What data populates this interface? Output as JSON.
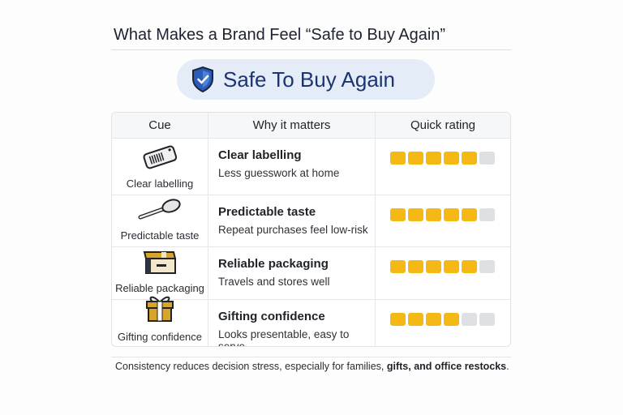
{
  "title": "What Makes a Brand Feel “Safe to Buy Again”",
  "badge": {
    "label": "Safe To Buy Again",
    "icon": "shield-check-icon",
    "color": "#1d3470"
  },
  "table": {
    "headers": [
      "Cue",
      "Why it matters",
      "Quick rating"
    ],
    "rows": [
      {
        "cue": "Clear labelling",
        "icon": "label-tag-icon",
        "title": "Clear labelling",
        "desc": "Less guesswork at home",
        "rating": 5,
        "max": 6
      },
      {
        "cue": "Predictable taste",
        "icon": "spoon-icon",
        "title": "Predictable taste",
        "desc": "Repeat purchases feel low-risk",
        "rating": 5,
        "max": 6
      },
      {
        "cue": "Reliable packaging",
        "icon": "box-icon",
        "title": "Reliable packaging",
        "desc": "Travels and stores well",
        "rating": 5,
        "max": 6
      },
      {
        "cue": "Gifting confidence",
        "icon": "gift-icon",
        "title": "Gifting confidence",
        "desc": "Looks presentable, easy to serve",
        "rating": 4,
        "max": 6
      }
    ]
  },
  "footer": {
    "text": "Consistency reduces decision stress, especially for families, ",
    "bold": "gifts, and office restocks",
    "end": "."
  },
  "colors": {
    "rating_on": "#f5b916",
    "rating_off": "#dfe0e3"
  }
}
